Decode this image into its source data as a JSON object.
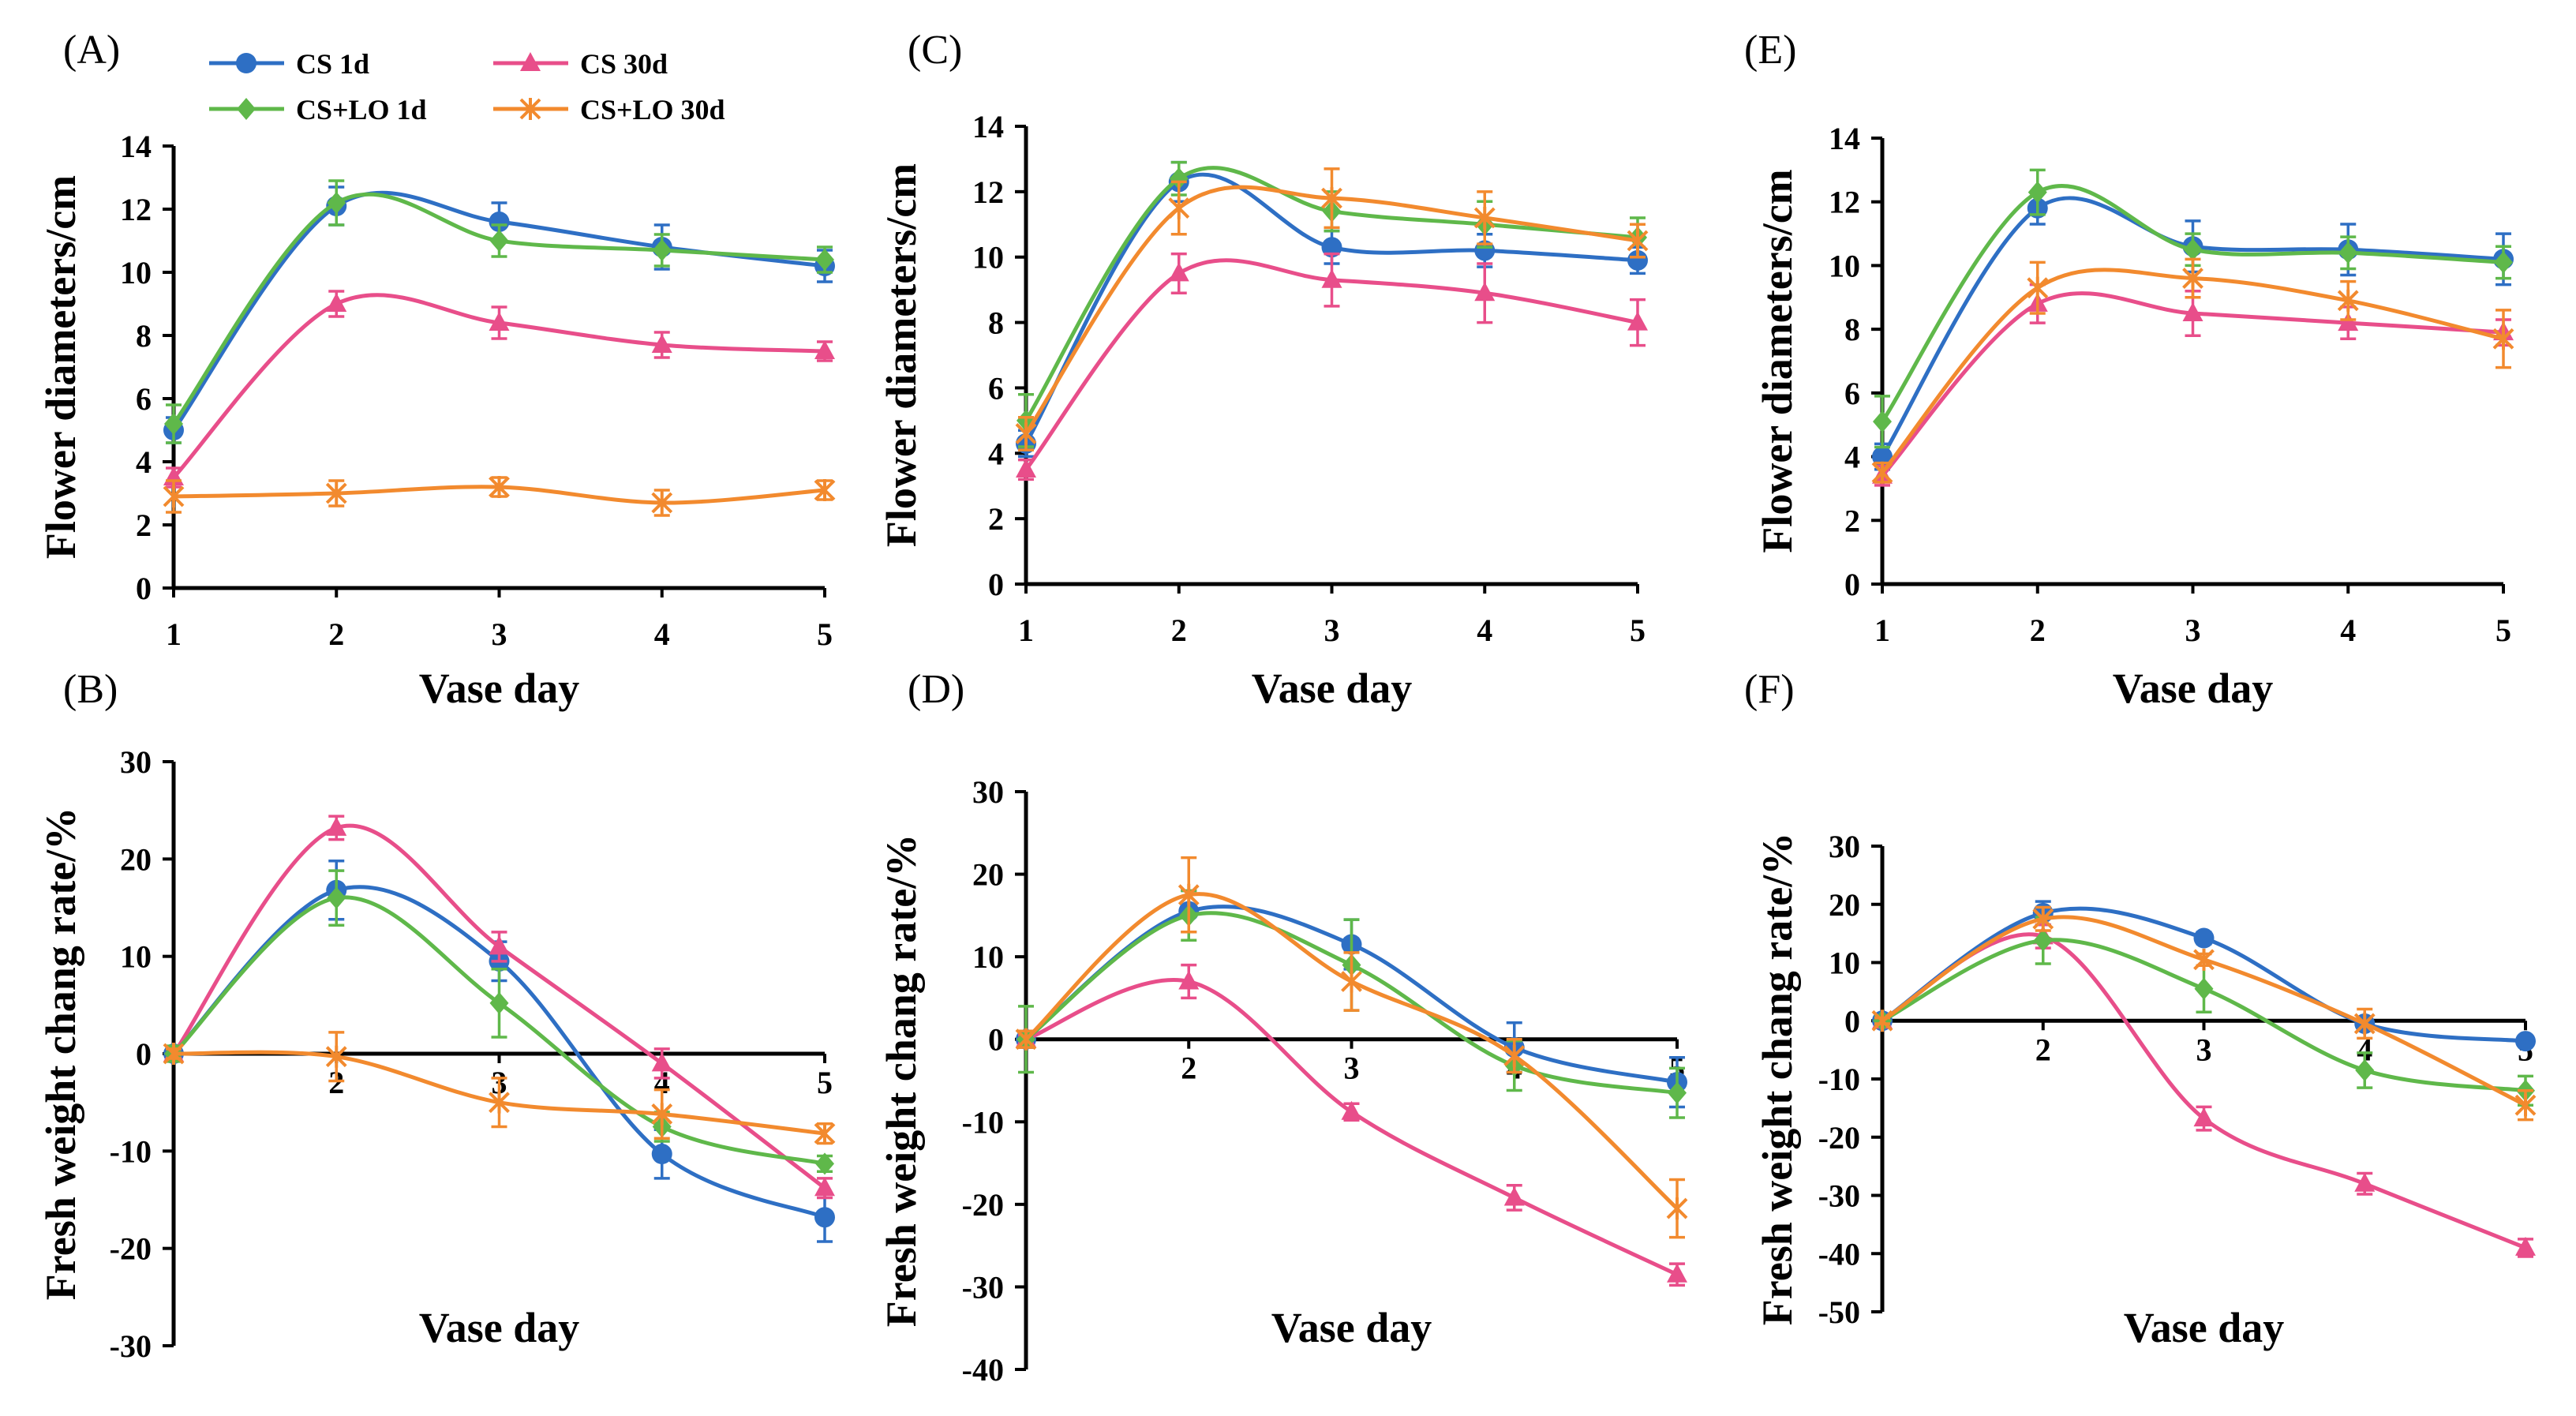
{
  "legend": {
    "entries": [
      {
        "name": "CS 1d",
        "color": "#2e6fc4",
        "marker": "circle"
      },
      {
        "name": "CS 30d",
        "color": "#e84e8a",
        "marker": "triangle"
      },
      {
        "name": "CS+LO 1d",
        "color": "#5fb84a",
        "marker": "diamond"
      },
      {
        "name": "CS+LO 30d",
        "color": "#f28a2e",
        "marker": "star"
      }
    ]
  },
  "chart_data": [
    {
      "label": "(A)",
      "type": "line",
      "xlabel": "Vase day",
      "ylabel": "Flower diameters/cm",
      "ylim": [
        0,
        14
      ],
      "yticks": [
        "0",
        "2",
        "4",
        "6",
        "8",
        "10",
        "12",
        "14"
      ],
      "categories": [
        "1",
        "2",
        "3",
        "4",
        "5"
      ],
      "x_axis_at_zero": false,
      "series": [
        {
          "name": "CS 1d",
          "values": [
            5.0,
            12.1,
            11.6,
            10.8,
            10.2
          ],
          "errors": [
            0.4,
            0.6,
            0.6,
            0.7,
            0.5
          ]
        },
        {
          "name": "CS 30d",
          "values": [
            3.5,
            9.0,
            8.4,
            7.7,
            7.5
          ],
          "errors": [
            0.3,
            0.4,
            0.5,
            0.4,
            0.3
          ]
        },
        {
          "name": "CS+LO 1d",
          "values": [
            5.2,
            12.2,
            11.0,
            10.7,
            10.4
          ],
          "errors": [
            0.6,
            0.7,
            0.5,
            0.5,
            0.4
          ]
        },
        {
          "name": "CS+LO 30d",
          "values": [
            2.9,
            3.0,
            3.2,
            2.7,
            3.1
          ],
          "errors": [
            0.5,
            0.4,
            0.3,
            0.4,
            0.3
          ]
        }
      ]
    },
    {
      "label": "(C)",
      "type": "line",
      "xlabel": "Vase day",
      "ylabel": "Flower diameters/cm",
      "ylim": [
        0,
        14
      ],
      "yticks": [
        "0",
        "2",
        "4",
        "6",
        "8",
        "10",
        "12",
        "14"
      ],
      "categories": [
        "1",
        "2",
        "3",
        "4",
        "5"
      ],
      "x_axis_at_zero": false,
      "series": [
        {
          "name": "CS 1d",
          "values": [
            4.3,
            12.3,
            10.3,
            10.2,
            9.9
          ],
          "errors": [
            0.4,
            0.6,
            0.5,
            0.5,
            0.4
          ]
        },
        {
          "name": "CS 30d",
          "values": [
            3.5,
            9.5,
            9.3,
            8.9,
            8.0
          ],
          "errors": [
            0.3,
            0.6,
            0.8,
            0.9,
            0.7
          ]
        },
        {
          "name": "CS+LO 1d",
          "values": [
            5.0,
            12.4,
            11.4,
            11.0,
            10.6
          ],
          "errors": [
            0.8,
            0.5,
            0.6,
            0.7,
            0.6
          ]
        },
        {
          "name": "CS+LO 30d",
          "values": [
            4.6,
            11.5,
            11.8,
            11.2,
            10.5
          ],
          "errors": [
            0.5,
            0.8,
            0.9,
            0.8,
            0.5
          ]
        }
      ]
    },
    {
      "label": "(E)",
      "type": "line",
      "xlabel": "Vase day",
      "ylabel": "Flower diameters/cm",
      "ylim": [
        0,
        14
      ],
      "yticks": [
        "0",
        "2",
        "4",
        "6",
        "8",
        "10",
        "12",
        "14"
      ],
      "categories": [
        "1",
        "2",
        "3",
        "4",
        "5"
      ],
      "x_axis_at_zero": false,
      "series": [
        {
          "name": "CS 1d",
          "values": [
            4.0,
            11.8,
            10.6,
            10.5,
            10.2
          ],
          "errors": [
            0.4,
            0.5,
            0.8,
            0.8,
            0.8
          ]
        },
        {
          "name": "CS 30d",
          "values": [
            3.4,
            8.8,
            8.5,
            8.2,
            7.9
          ],
          "errors": [
            0.3,
            0.6,
            0.7,
            0.5,
            0.4
          ]
        },
        {
          "name": "CS+LO 1d",
          "values": [
            5.1,
            12.3,
            10.5,
            10.4,
            10.1
          ],
          "errors": [
            0.8,
            0.7,
            0.5,
            0.5,
            0.5
          ]
        },
        {
          "name": "CS+LO 30d",
          "values": [
            3.5,
            9.3,
            9.6,
            8.9,
            7.7
          ],
          "errors": [
            0.3,
            0.8,
            0.6,
            0.6,
            0.9
          ]
        }
      ]
    },
    {
      "label": "(B)",
      "type": "line",
      "xlabel": "Vase day",
      "ylabel": "Fresh weight chang rate/%",
      "ylim": [
        -30,
        30
      ],
      "yticks": [
        "-30",
        "-20",
        "-10",
        "0",
        "10",
        "20",
        "30"
      ],
      "categories": [
        "1",
        "2",
        "3",
        "4",
        "5"
      ],
      "x_axis_at_zero": true,
      "series": [
        {
          "name": "CS 1d",
          "values": [
            0,
            16.8,
            9.5,
            -10.3,
            -16.8
          ],
          "errors": [
            0.5,
            3.0,
            2.0,
            2.5,
            2.5
          ]
        },
        {
          "name": "CS 30d",
          "values": [
            0,
            23.2,
            11.0,
            -1.0,
            -13.8
          ],
          "errors": [
            0.5,
            1.2,
            1.5,
            1.5,
            1.0
          ]
        },
        {
          "name": "CS+LO 1d",
          "values": [
            0,
            16.0,
            5.2,
            -7.5,
            -11.3
          ],
          "errors": [
            0.8,
            2.8,
            3.5,
            1.5,
            0.8
          ]
        },
        {
          "name": "CS+LO 30d",
          "values": [
            0,
            -0.3,
            -5.0,
            -6.2,
            -8.2
          ],
          "errors": [
            0.5,
            2.5,
            2.5,
            2.5,
            1.0
          ]
        }
      ]
    },
    {
      "label": "(D)",
      "type": "line",
      "xlabel": "Vase day",
      "ylabel": "Fresh weight chang rate/%",
      "ylim": [
        -40,
        30
      ],
      "yticks": [
        "-40",
        "-30",
        "-20",
        "-10",
        "0",
        "10",
        "20",
        "30"
      ],
      "categories": [
        "1",
        "2",
        "3",
        "4",
        "5"
      ],
      "x_axis_at_zero": true,
      "series": [
        {
          "name": "CS 1d",
          "values": [
            0,
            15.5,
            11.5,
            -1.0,
            -5.2
          ],
          "errors": [
            1.0,
            2.5,
            3.0,
            3.0,
            3.0
          ]
        },
        {
          "name": "CS 30d",
          "values": [
            0,
            7.0,
            -8.8,
            -19.2,
            -28.5
          ],
          "errors": [
            0.5,
            2.0,
            1.0,
            1.5,
            1.3
          ]
        },
        {
          "name": "CS+LO 1d",
          "values": [
            0,
            15.0,
            9.0,
            -3.2,
            -6.5
          ],
          "errors": [
            4.0,
            3.0,
            5.5,
            3.0,
            3.0
          ]
        },
        {
          "name": "CS+LO 30d",
          "values": [
            0,
            17.5,
            7.0,
            -2.0,
            -20.5
          ],
          "errors": [
            1.0,
            4.5,
            3.5,
            2.0,
            3.5
          ]
        }
      ]
    },
    {
      "label": "(F)",
      "type": "line",
      "xlabel": "Vase day",
      "ylabel": "Fresh weight chang rate/%",
      "ylim": [
        -50,
        30
      ],
      "yticks": [
        "-50",
        "-40",
        "-30",
        "-20",
        "-10",
        "0",
        "10",
        "20",
        "30"
      ],
      "categories": [
        "1",
        "2",
        "3",
        "4",
        "5"
      ],
      "x_axis_at_zero": true,
      "series": [
        {
          "name": "CS 1d",
          "values": [
            0,
            18.5,
            14.2,
            -0.5,
            -3.5
          ],
          "errors": [
            0.5,
            2.0,
            1.0,
            1.0,
            0.8
          ]
        },
        {
          "name": "CS 30d",
          "values": [
            0,
            14.5,
            -16.8,
            -28.0,
            -39.0
          ],
          "errors": [
            0.5,
            2.0,
            2.0,
            1.8,
            1.5
          ]
        },
        {
          "name": "CS+LO 1d",
          "values": [
            0,
            13.8,
            5.5,
            -8.5,
            -12.0
          ],
          "errors": [
            0.8,
            4.0,
            4.0,
            3.0,
            2.5
          ]
        },
        {
          "name": "CS+LO 30d",
          "values": [
            0,
            17.5,
            10.5,
            -0.5,
            -14.5
          ],
          "errors": [
            0.5,
            2.0,
            1.0,
            2.5,
            2.5
          ]
        }
      ]
    }
  ]
}
